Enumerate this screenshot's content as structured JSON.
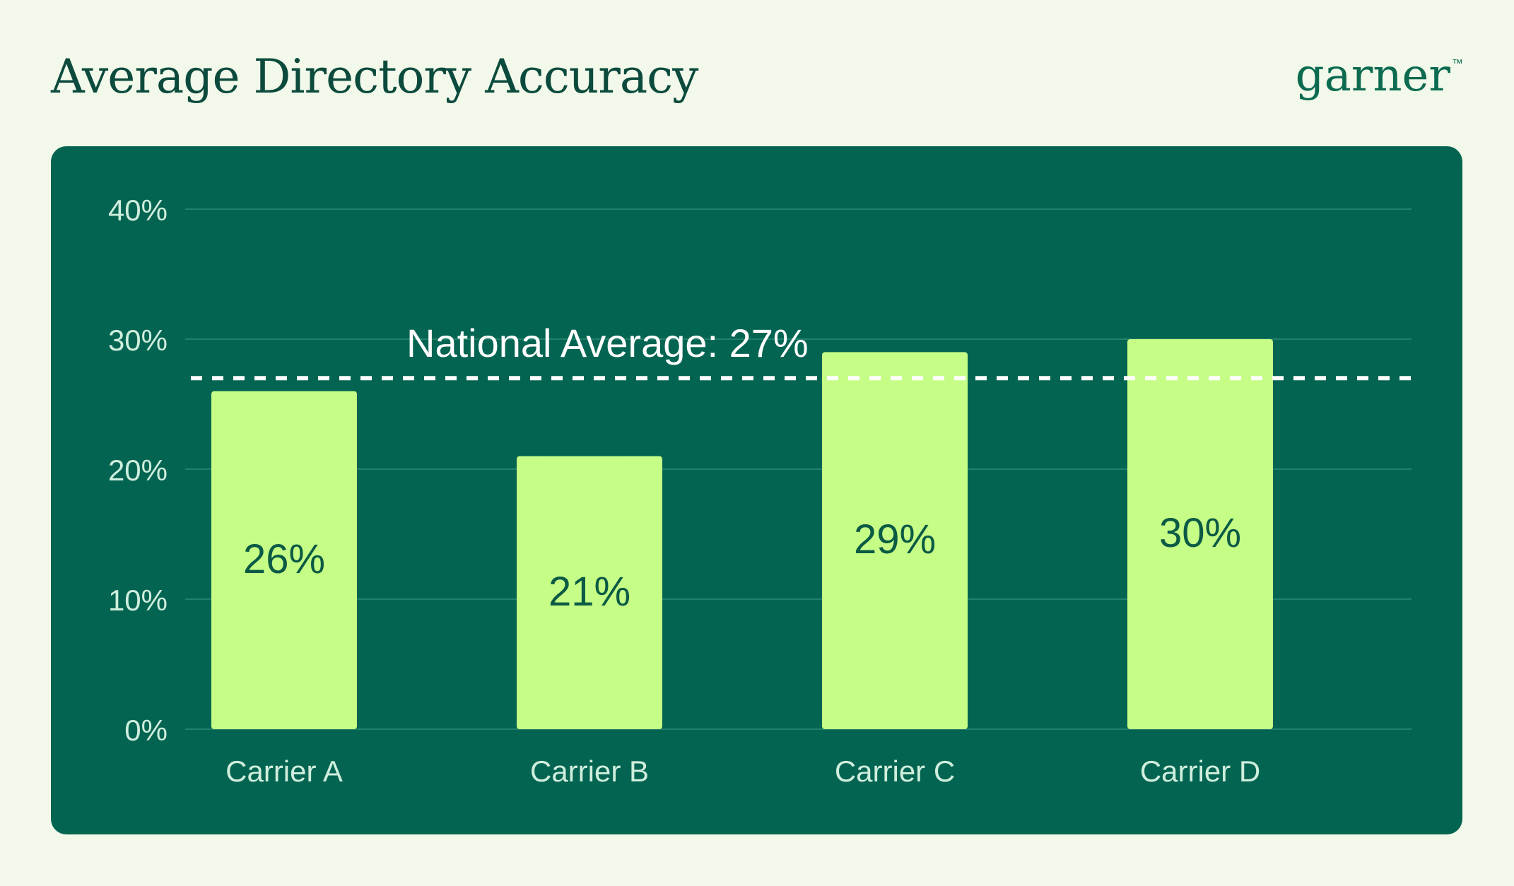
{
  "header": {
    "title": "Average Directory Accuracy",
    "logo_text": "garner",
    "logo_mark": "™"
  },
  "colors": {
    "background": "#f2f9ea",
    "panel": "#036451",
    "bar": "#c6fd86",
    "bar_label": "#0b5a45",
    "axis_text": "#cfeedd",
    "gridline": "#2e8a73",
    "reference_line": "#ffffff"
  },
  "chart_data": {
    "type": "bar",
    "title": "Average Directory Accuracy",
    "xlabel": "",
    "ylabel": "",
    "categories": [
      "Carrier A",
      "Carrier B",
      "Carrier C",
      "Carrier D"
    ],
    "values": [
      26,
      21,
      29,
      30
    ],
    "value_labels": [
      "26%",
      "21%",
      "29%",
      "30%"
    ],
    "ylim": [
      0,
      40
    ],
    "yticks": [
      0,
      10,
      20,
      30,
      40
    ],
    "ytick_labels": [
      "0%",
      "10%",
      "20%",
      "30%",
      "40%"
    ],
    "grid": true,
    "legend": "none",
    "reference_line": {
      "value": 27,
      "label": "National Average: 27%",
      "style": "dotted"
    }
  }
}
